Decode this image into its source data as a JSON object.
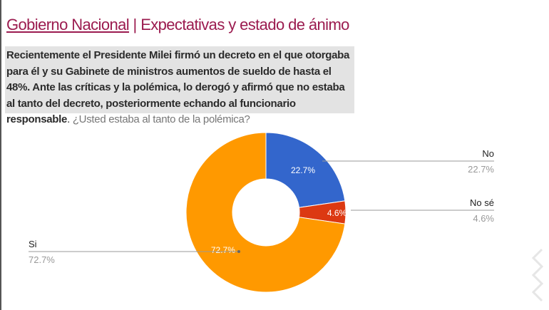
{
  "header": {
    "title_main": "Gobierno Nacional",
    "separator": "|",
    "title_sub": "Expectativas y estado de ánimo"
  },
  "question": {
    "bold_text": "Recientemente el Presidente Milei firmó un decreto en el que otorgaba para él y su Gabinete de ministros aumentos de sueldo de hasta el 48%. Ante las críticas y la polémica, lo derogó y afirmó que no estaba al tanto del decreto, posteriormente echando al funcionario responsable",
    "period": ".",
    "question_text": " ¿Usted estaba al tanto de la polémica?"
  },
  "chart_data": {
    "type": "pie",
    "donut": true,
    "legend": "labels with leader lines",
    "slices": [
      {
        "label": "No",
        "value": 22.7,
        "value_label": "22.7%",
        "color": "#3366cc"
      },
      {
        "label": "No sé",
        "value": 4.6,
        "value_label": "4.6%",
        "color": "#dc3912"
      },
      {
        "label": "Si",
        "value": 72.7,
        "value_label": "72.7%",
        "color": "#ff9900"
      }
    ]
  }
}
